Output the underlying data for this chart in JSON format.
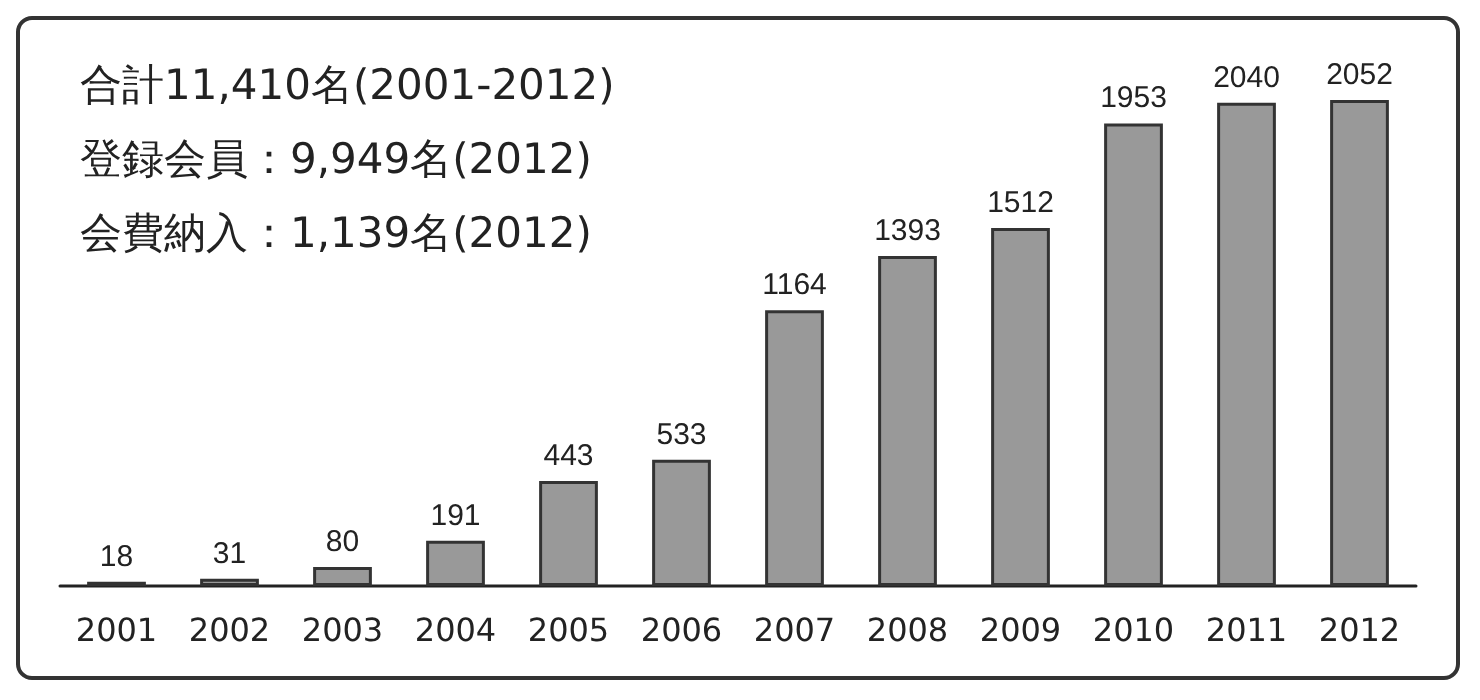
{
  "chart_data": {
    "type": "bar",
    "categories": [
      "2001",
      "2002",
      "2003",
      "2004",
      "2005",
      "2006",
      "2007",
      "2008",
      "2009",
      "2010",
      "2011",
      "2012"
    ],
    "values": [
      18,
      31,
      80,
      191,
      443,
      533,
      1164,
      1393,
      1512,
      1953,
      2040,
      2052
    ],
    "color": "#999999",
    "data_labels": true,
    "annotations": [
      "合計11,410名(2001-2012)",
      "登録会員：9,949名(2012)",
      "会費納入：1,139名(2012)"
    ]
  }
}
